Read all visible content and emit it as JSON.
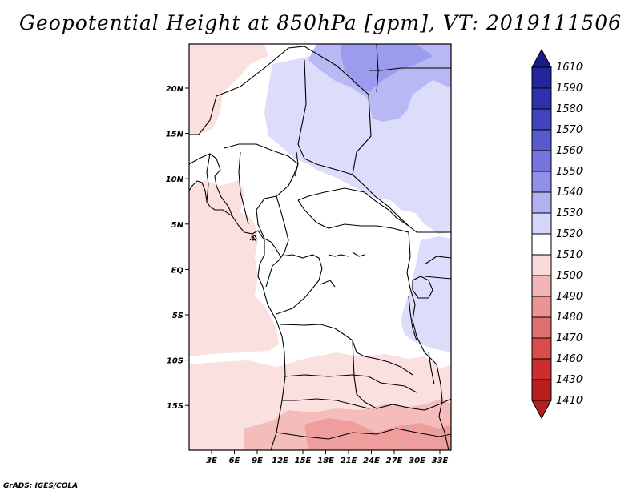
{
  "title": "Geopotential Height at 850hPa [gpm], VT: 2019111506",
  "footer": "GrADS: IGES/COLA",
  "map": {
    "lat_ticks": [
      "20N",
      "15N",
      "10N",
      "5N",
      "EQ",
      "5S",
      "10S",
      "15S"
    ],
    "lon_ticks": [
      "3E",
      "6E",
      "9E",
      "12E",
      "15E",
      "18E",
      "21E",
      "24E",
      "27E",
      "30E",
      "33E"
    ]
  },
  "colorbar": {
    "levels": [
      "1610",
      "1590",
      "1580",
      "1570",
      "1560",
      "1550",
      "1540",
      "1530",
      "1520",
      "1510",
      "1500",
      "1490",
      "1480",
      "1470",
      "1460",
      "1430",
      "1410"
    ],
    "colors": [
      "#1a1a8c",
      "#24249c",
      "#3030ae",
      "#4343c0",
      "#5a5ad0",
      "#7474de",
      "#9090ea",
      "#b0b0f2",
      "#d6d6fa",
      "#ffffff",
      "#fadada",
      "#f3b6b6",
      "#ea9494",
      "#e07070",
      "#d84c4c",
      "#cc2e2e",
      "#b81e1e"
    ]
  }
}
